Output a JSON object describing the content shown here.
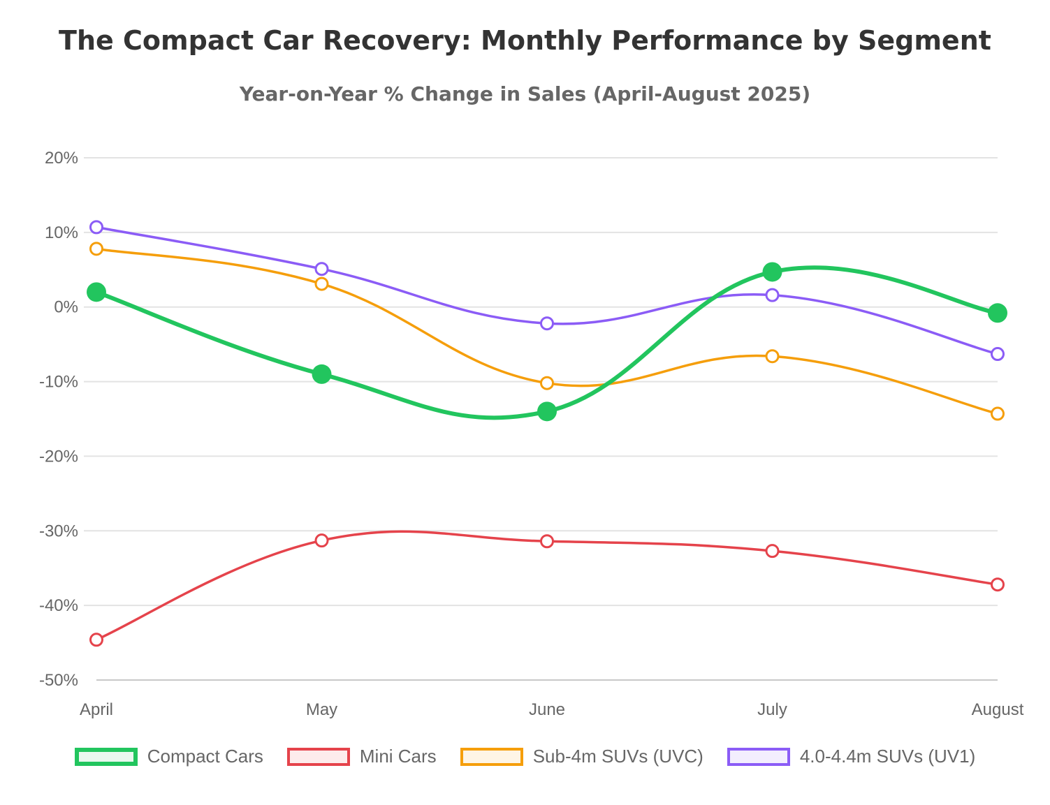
{
  "chart_data": {
    "type": "line",
    "title": "The Compact Car Recovery: Monthly Performance by Segment",
    "subtitle": "Year-on-Year % Change in Sales (April-August 2025)",
    "xlabel": "",
    "ylabel": "",
    "categories": [
      "April",
      "May",
      "June",
      "July",
      "August"
    ],
    "ylim": [
      -50,
      20
    ],
    "y_ticks": [
      20,
      10,
      0,
      -10,
      -20,
      -30,
      -40,
      -50
    ],
    "y_tick_labels": [
      "20%",
      "10%",
      "0%",
      "-10%",
      "-20%",
      "-30%",
      "-40%",
      "-50%"
    ],
    "grid": true,
    "legend_position": "bottom",
    "series": [
      {
        "name": "Compact Cars",
        "values": [
          2.0,
          -9.0,
          -14.0,
          4.7,
          -0.8
        ],
        "color": "#22c55e",
        "fill": "#e9f8ef",
        "emphasis": true
      },
      {
        "name": "Mini Cars",
        "values": [
          -44.6,
          -31.3,
          -31.4,
          -32.7,
          -37.2
        ],
        "color": "#e5434b",
        "fill": "#fdecec",
        "emphasis": false
      },
      {
        "name": "Sub-4m SUVs (UVC)",
        "values": [
          7.8,
          3.1,
          -10.2,
          -6.6,
          -14.3
        ],
        "color": "#f59e0b",
        "fill": "#fef5e6",
        "emphasis": false
      },
      {
        "name": "4.0-4.4m SUVs (UV1)",
        "values": [
          10.7,
          5.1,
          -2.2,
          1.6,
          -6.3
        ],
        "color": "#8b5cf6",
        "fill": "#f3eefe",
        "emphasis": false
      }
    ]
  }
}
